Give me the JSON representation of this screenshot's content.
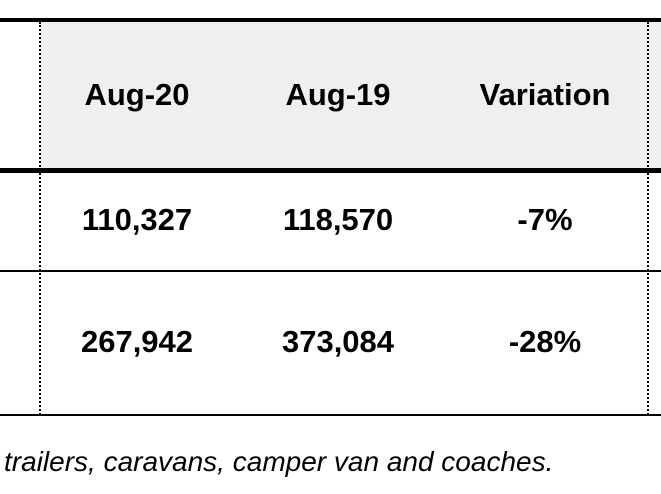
{
  "table": {
    "header": [
      "Aug-20",
      "Aug-19",
      "Variation"
    ],
    "rows": [
      [
        "110,327",
        "118,570",
        "-7%"
      ],
      [
        "267,942",
        "373,084",
        "-28%"
      ]
    ]
  },
  "footnote": "trailers, caravans, camper van and coaches."
}
